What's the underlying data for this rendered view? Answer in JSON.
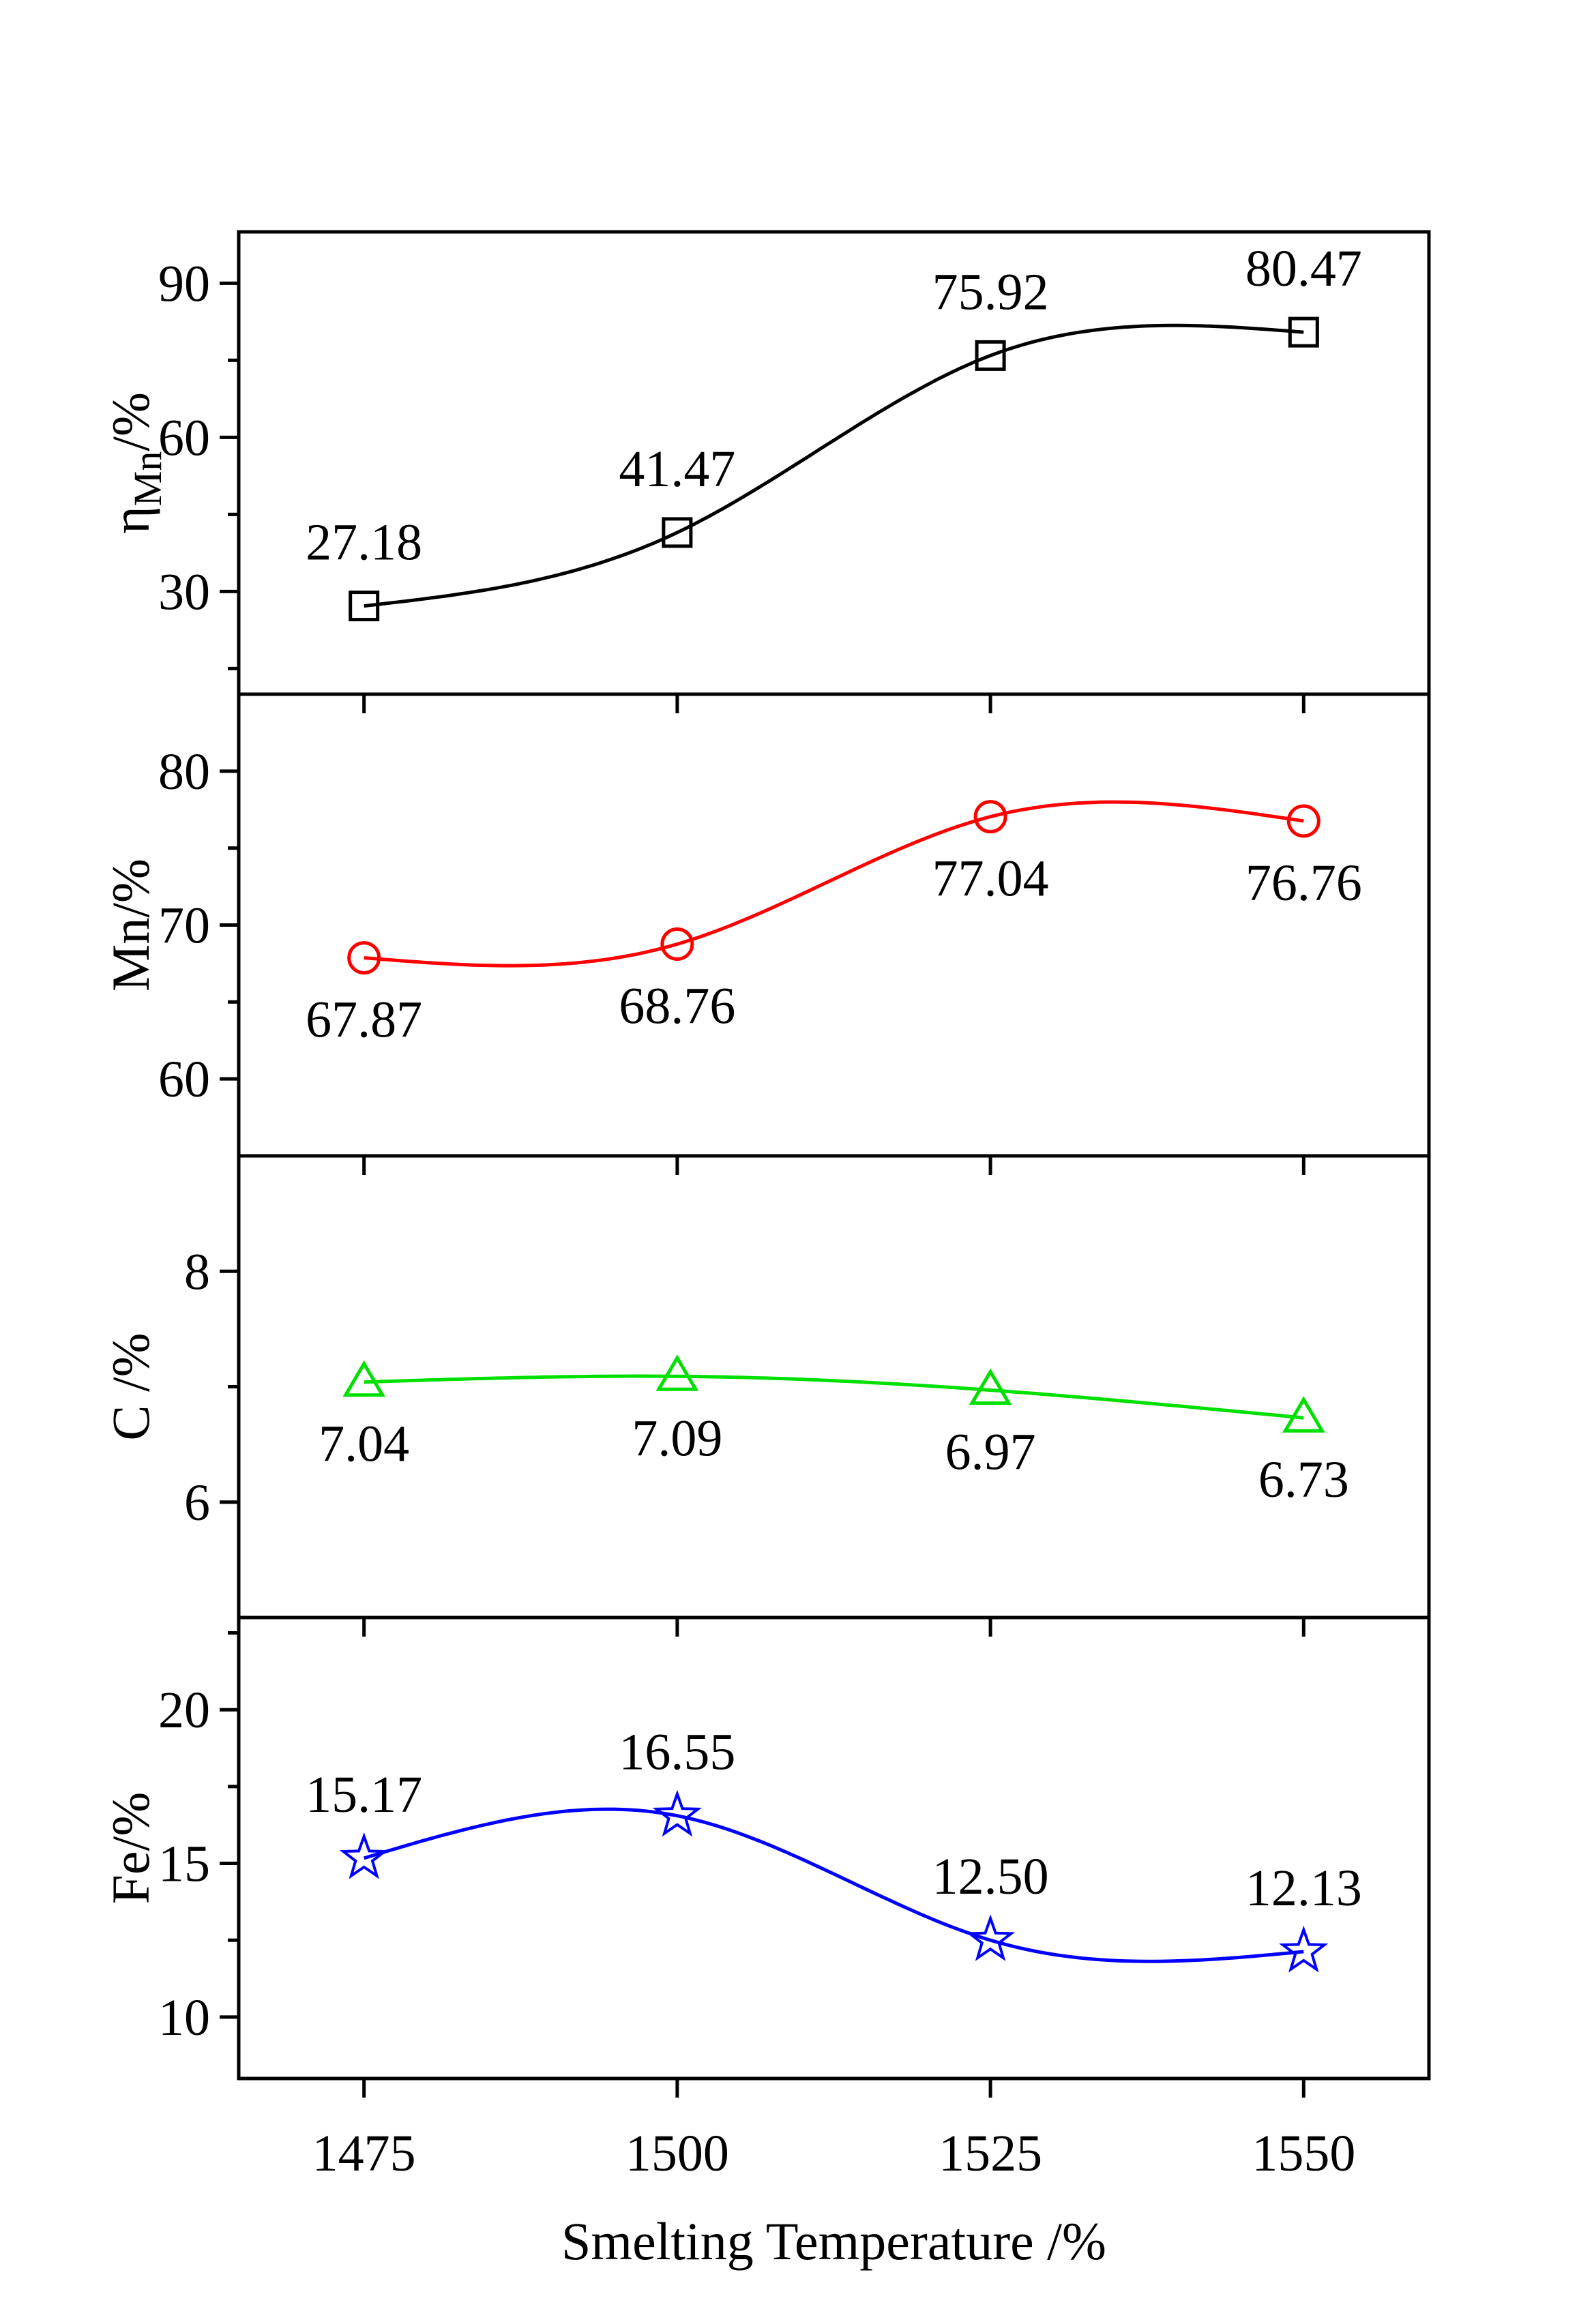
{
  "chart_data": {
    "type": "line",
    "x": [
      1475,
      1500,
      1525,
      1550
    ],
    "xlabel": "Smelting Temperature /%",
    "xlim": [
      1465,
      1560
    ],
    "xticks": [
      "1475",
      "1500",
      "1525",
      "1550"
    ],
    "panels": [
      {
        "id": "eta_mn",
        "ylabel_main": "η",
        "ylabel_sub": "Mn",
        "ylabel_unit": "/%",
        "ylim": [
          10,
          100
        ],
        "yticks": [
          30,
          60,
          90
        ],
        "ytick_labels": [
          "30",
          "60",
          "90"
        ],
        "color": "#000000",
        "marker": "square",
        "label_position": "above",
        "values": [
          27.18,
          41.47,
          75.92,
          80.47
        ],
        "labels": [
          "27.18",
          "41.47",
          "75.92",
          "80.47"
        ]
      },
      {
        "id": "mn",
        "ylabel": "Mn/%",
        "ylim": [
          55,
          85
        ],
        "yticks": [
          60,
          70,
          80
        ],
        "ytick_labels": [
          "60",
          "70",
          "80"
        ],
        "color": "#ff0000",
        "marker": "circle",
        "label_position": "below",
        "values": [
          67.87,
          68.76,
          77.04,
          76.76
        ],
        "labels": [
          "67.87",
          "68.76",
          "77.04",
          "76.76"
        ]
      },
      {
        "id": "c",
        "ylabel": "C /%",
        "ylim": [
          5,
          9
        ],
        "yticks": [
          6,
          8
        ],
        "ytick_labels": [
          "6",
          "8"
        ],
        "color": "#00e000",
        "marker": "triangle",
        "label_position": "below",
        "values": [
          7.04,
          7.09,
          6.97,
          6.73
        ],
        "labels": [
          "7.04",
          "7.09",
          "6.97",
          "6.73"
        ]
      },
      {
        "id": "fe",
        "ylabel": "Fe/%",
        "ylim": [
          8,
          23
        ],
        "yticks": [
          10,
          15,
          20
        ],
        "ytick_labels": [
          "10",
          "15",
          "20"
        ],
        "color": "#0000ff",
        "marker": "star",
        "label_position": "above",
        "values": [
          15.17,
          16.55,
          12.5,
          12.13
        ],
        "labels": [
          "15.17",
          "16.55",
          "12.50",
          "12.13"
        ]
      }
    ]
  }
}
